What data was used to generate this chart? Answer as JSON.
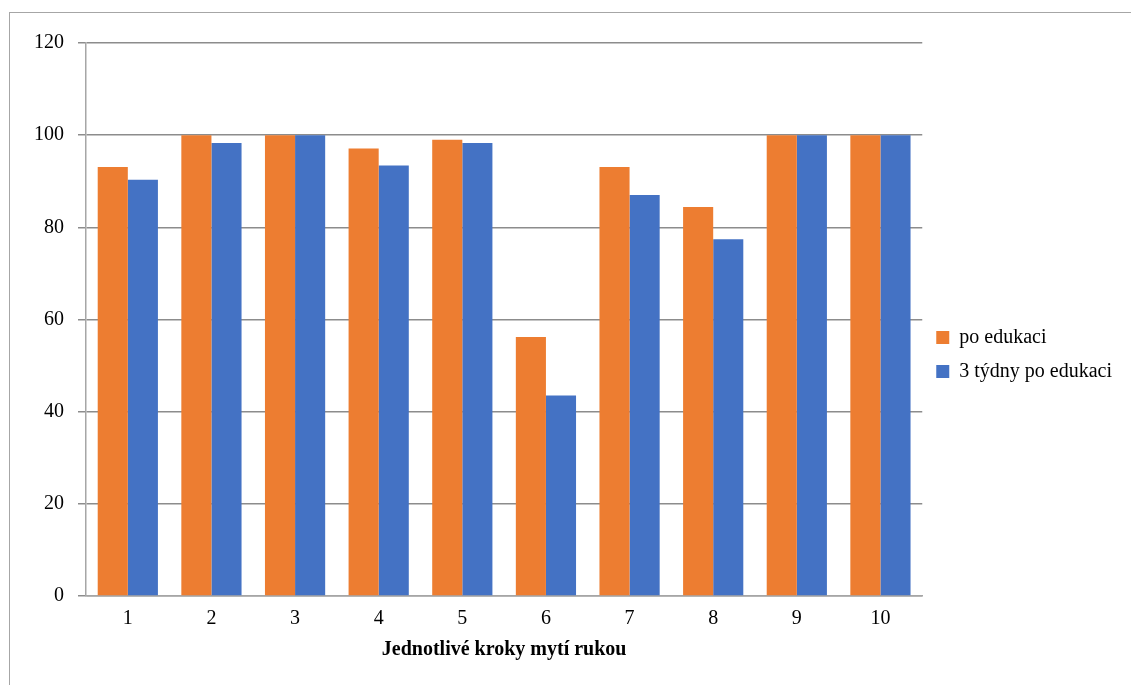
{
  "chart_data": {
    "type": "bar",
    "xlabel": "Jednotlivé kroky mytí rukou",
    "categories": [
      "1",
      "2",
      "3",
      "4",
      "5",
      "6",
      "7",
      "8",
      "9",
      "10"
    ],
    "series": [
      {
        "name": "po edukaci",
        "color": "#ed7d31",
        "values": [
          93.1,
          100,
          100,
          97.1,
          99,
          56.2,
          93.1,
          84.4,
          100,
          100
        ]
      },
      {
        "name": "3 týdny po edukaci",
        "color": "#4472c4",
        "values": [
          90.3,
          98.3,
          100,
          93.4,
          98.3,
          43.5,
          87,
          77.4,
          100,
          100
        ]
      }
    ],
    "ylim": [
      0,
      120
    ],
    "yticks": [
      0,
      20,
      40,
      60,
      80,
      100,
      120
    ],
    "grid": "y",
    "legend": "right"
  }
}
